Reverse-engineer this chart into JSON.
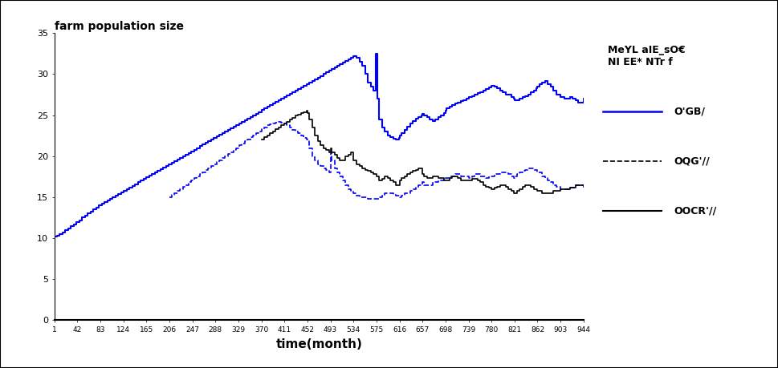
{
  "title": "farm population size",
  "xlabel": "time(month)",
  "ylim": [
    0,
    35
  ],
  "xlim": [
    1,
    944
  ],
  "xticks": [
    1,
    42,
    83,
    124,
    165,
    206,
    247,
    288,
    329,
    370,
    411,
    452,
    493,
    534,
    575,
    616,
    657,
    698,
    739,
    780,
    821,
    862,
    903,
    944
  ],
  "yticks": [
    0,
    5,
    10,
    15,
    20,
    25,
    30,
    35
  ],
  "legend_title": "MeYL aIE_sO€\nNI EE* NTr f",
  "legend_labels": [
    "O'GB/",
    "OQG'//",
    "OOCR'//"
  ],
  "line_blue_solid_color": "blue",
  "line_blue_dashed_color": "blue",
  "line_black_solid_color": "black",
  "background_color": "#ffffff",
  "figsize": [
    9.69,
    4.59
  ],
  "dpi": 100,
  "blue_x": [
    1,
    5,
    10,
    15,
    20,
    25,
    30,
    35,
    40,
    45,
    50,
    55,
    60,
    65,
    70,
    75,
    80,
    85,
    90,
    95,
    100,
    105,
    110,
    115,
    120,
    125,
    130,
    135,
    140,
    145,
    150,
    155,
    160,
    165,
    170,
    175,
    180,
    185,
    190,
    195,
    200,
    205,
    210,
    215,
    220,
    225,
    230,
    235,
    240,
    245,
    250,
    255,
    260,
    265,
    270,
    275,
    280,
    285,
    290,
    295,
    300,
    305,
    310,
    315,
    320,
    325,
    330,
    335,
    340,
    345,
    350,
    355,
    360,
    365,
    370,
    375,
    380,
    385,
    390,
    395,
    400,
    405,
    410,
    415,
    420,
    425,
    430,
    435,
    440,
    445,
    450,
    455,
    460,
    465,
    470,
    475,
    480,
    485,
    490,
    495,
    500,
    505,
    510,
    515,
    520,
    525,
    530,
    534,
    540,
    545,
    550,
    555,
    560,
    565,
    570,
    574,
    576,
    580,
    585,
    590,
    595,
    600,
    605,
    610,
    615,
    616,
    620,
    625,
    630,
    635,
    640,
    645,
    650,
    655,
    657,
    660,
    665,
    670,
    675,
    680,
    685,
    690,
    695,
    698,
    700,
    705,
    710,
    715,
    720,
    725,
    730,
    735,
    739,
    745,
    750,
    755,
    760,
    765,
    770,
    775,
    780,
    785,
    790,
    795,
    800,
    805,
    810,
    815,
    820,
    821,
    825,
    830,
    835,
    840,
    845,
    850,
    855,
    860,
    862,
    865,
    870,
    875,
    880,
    885,
    890,
    895,
    900,
    903,
    910,
    915,
    920,
    925,
    930,
    935,
    940,
    944
  ],
  "blue_y": [
    10.2,
    10.3,
    10.5,
    10.7,
    11.0,
    11.2,
    11.5,
    11.7,
    12.0,
    12.2,
    12.5,
    12.7,
    13.0,
    13.2,
    13.5,
    13.7,
    14.0,
    14.2,
    14.4,
    14.6,
    14.8,
    15.0,
    15.2,
    15.4,
    15.6,
    15.8,
    16.0,
    16.2,
    16.4,
    16.6,
    16.8,
    17.0,
    17.2,
    17.4,
    17.6,
    17.8,
    18.0,
    18.2,
    18.4,
    18.6,
    18.8,
    19.0,
    19.2,
    19.4,
    19.6,
    19.8,
    20.0,
    20.2,
    20.4,
    20.6,
    20.8,
    21.0,
    21.2,
    21.4,
    21.6,
    21.8,
    22.0,
    22.2,
    22.4,
    22.6,
    22.8,
    23.0,
    23.2,
    23.4,
    23.6,
    23.8,
    24.0,
    24.2,
    24.4,
    24.6,
    24.8,
    25.0,
    25.2,
    25.4,
    25.6,
    25.8,
    26.0,
    26.2,
    26.4,
    26.6,
    26.8,
    27.0,
    27.2,
    27.4,
    27.6,
    27.8,
    28.0,
    28.2,
    28.4,
    28.6,
    28.8,
    29.0,
    29.2,
    29.4,
    29.6,
    29.8,
    30.0,
    30.2,
    30.4,
    30.6,
    30.8,
    31.0,
    31.2,
    31.4,
    31.6,
    31.8,
    32.0,
    32.2,
    32.0,
    31.5,
    31.0,
    30.0,
    29.0,
    28.5,
    28.0,
    32.5,
    27.0,
    24.5,
    23.5,
    23.0,
    22.5,
    22.3,
    22.1,
    22.0,
    22.2,
    22.5,
    22.8,
    23.2,
    23.6,
    24.0,
    24.3,
    24.6,
    24.8,
    25.0,
    25.2,
    25.0,
    24.8,
    24.5,
    24.3,
    24.5,
    24.8,
    25.0,
    25.3,
    25.5,
    25.8,
    26.0,
    26.2,
    26.4,
    26.5,
    26.7,
    26.8,
    27.0,
    27.2,
    27.3,
    27.5,
    27.7,
    27.8,
    28.0,
    28.2,
    28.4,
    28.6,
    28.5,
    28.3,
    28.0,
    27.8,
    27.5,
    27.5,
    27.2,
    27.0,
    26.8,
    26.8,
    27.0,
    27.2,
    27.3,
    27.5,
    27.8,
    28.0,
    28.3,
    28.5,
    28.8,
    29.0,
    29.2,
    28.8,
    28.5,
    28.0,
    27.5,
    27.5,
    27.2,
    27.0,
    27.0,
    27.2,
    27.0,
    26.8,
    26.5,
    26.5,
    27.0
  ],
  "dashed_x": [
    206,
    210,
    215,
    220,
    225,
    230,
    235,
    240,
    245,
    250,
    255,
    260,
    265,
    270,
    275,
    280,
    285,
    290,
    295,
    300,
    305,
    310,
    315,
    320,
    325,
    330,
    335,
    340,
    345,
    350,
    355,
    360,
    365,
    370,
    375,
    380,
    385,
    390,
    395,
    400,
    405,
    410,
    415,
    420,
    425,
    430,
    435,
    440,
    445,
    450,
    455,
    460,
    465,
    470,
    475,
    480,
    485,
    490,
    493,
    495,
    500,
    505,
    510,
    515,
    520,
    525,
    530,
    534,
    540,
    545,
    550,
    555,
    560,
    565,
    570,
    575,
    580,
    585,
    590,
    595,
    600,
    605,
    610,
    616,
    620,
    625,
    630,
    635,
    640,
    645,
    650,
    657,
    660,
    665,
    670,
    675,
    680,
    685,
    690,
    695,
    698,
    705,
    710,
    715,
    720,
    725,
    730,
    739,
    745,
    750,
    755,
    760,
    765,
    770,
    775,
    780,
    785,
    790,
    795,
    800,
    805,
    810,
    815,
    820,
    821,
    825,
    830,
    835,
    840,
    845,
    850,
    855,
    862,
    870,
    875,
    880,
    885,
    890,
    895,
    903,
    910,
    920,
    930,
    944
  ],
  "dashed_y": [
    15.0,
    15.3,
    15.5,
    15.8,
    16.0,
    16.3,
    16.5,
    16.8,
    17.0,
    17.3,
    17.5,
    17.8,
    18.0,
    18.3,
    18.5,
    18.8,
    19.0,
    19.3,
    19.5,
    19.8,
    20.0,
    20.3,
    20.5,
    20.8,
    21.0,
    21.3,
    21.5,
    21.8,
    22.0,
    22.3,
    22.5,
    22.8,
    23.0,
    23.3,
    23.5,
    23.8,
    23.9,
    24.0,
    24.1,
    24.2,
    24.1,
    24.0,
    23.8,
    23.5,
    23.2,
    23.0,
    22.8,
    22.5,
    22.2,
    22.0,
    21.0,
    20.0,
    19.5,
    19.0,
    18.8,
    18.5,
    18.3,
    18.0,
    20.5,
    19.5,
    18.5,
    18.0,
    17.5,
    17.0,
    16.5,
    16.0,
    15.8,
    15.5,
    15.2,
    15.0,
    15.0,
    15.0,
    14.8,
    14.8,
    14.8,
    14.8,
    15.0,
    15.2,
    15.5,
    15.5,
    15.5,
    15.3,
    15.2,
    15.0,
    15.2,
    15.5,
    15.5,
    15.8,
    16.0,
    16.2,
    16.5,
    16.8,
    16.5,
    16.5,
    16.5,
    16.8,
    16.8,
    17.0,
    17.0,
    17.2,
    17.3,
    17.5,
    17.5,
    17.8,
    17.8,
    17.5,
    17.5,
    17.3,
    17.5,
    17.8,
    17.8,
    17.5,
    17.5,
    17.3,
    17.5,
    17.5,
    17.8,
    17.8,
    18.0,
    18.0,
    18.0,
    17.8,
    17.5,
    17.3,
    17.5,
    17.8,
    18.0,
    18.2,
    18.3,
    18.5,
    18.5,
    18.3,
    18.0,
    17.5,
    17.3,
    17.0,
    16.8,
    16.5,
    16.3,
    16.0,
    16.0,
    16.2,
    16.5,
    16.2
  ],
  "black_x": [
    370,
    375,
    380,
    385,
    390,
    395,
    400,
    405,
    410,
    415,
    420,
    425,
    430,
    435,
    440,
    445,
    450,
    452,
    455,
    460,
    465,
    470,
    475,
    480,
    485,
    490,
    493,
    495,
    500,
    505,
    510,
    515,
    520,
    525,
    530,
    534,
    540,
    545,
    550,
    555,
    560,
    565,
    570,
    575,
    580,
    585,
    590,
    595,
    600,
    605,
    610,
    616,
    620,
    625,
    630,
    635,
    640,
    645,
    650,
    657,
    660,
    665,
    670,
    675,
    680,
    685,
    690,
    695,
    698,
    705,
    710,
    715,
    720,
    725,
    730,
    739,
    745,
    750,
    755,
    760,
    765,
    770,
    775,
    780,
    785,
    790,
    795,
    800,
    805,
    810,
    815,
    820,
    821,
    825,
    830,
    835,
    840,
    845,
    850,
    855,
    862,
    870,
    880,
    890,
    903,
    910,
    920,
    930,
    944
  ],
  "black_y": [
    22.0,
    22.3,
    22.5,
    22.8,
    23.0,
    23.3,
    23.5,
    23.8,
    24.0,
    24.2,
    24.5,
    24.7,
    25.0,
    25.1,
    25.3,
    25.4,
    25.5,
    25.3,
    24.5,
    23.5,
    22.5,
    21.8,
    21.3,
    21.0,
    20.8,
    20.5,
    21.0,
    20.5,
    20.2,
    19.8,
    19.5,
    19.5,
    20.0,
    20.2,
    20.5,
    19.5,
    19.0,
    18.8,
    18.5,
    18.3,
    18.2,
    18.0,
    17.8,
    17.5,
    17.0,
    17.2,
    17.5,
    17.3,
    17.0,
    16.8,
    16.5,
    17.0,
    17.3,
    17.5,
    17.8,
    18.0,
    18.2,
    18.3,
    18.5,
    17.8,
    17.5,
    17.3,
    17.3,
    17.5,
    17.5,
    17.3,
    17.3,
    17.0,
    17.0,
    17.3,
    17.5,
    17.5,
    17.3,
    17.0,
    17.0,
    17.0,
    17.2,
    17.2,
    17.0,
    16.8,
    16.5,
    16.3,
    16.2,
    16.0,
    16.2,
    16.3,
    16.5,
    16.5,
    16.3,
    16.0,
    15.8,
    15.5,
    15.5,
    15.8,
    16.0,
    16.3,
    16.5,
    16.5,
    16.3,
    16.0,
    15.8,
    15.5,
    15.5,
    15.8,
    16.0,
    16.0,
    16.2,
    16.5,
    16.5
  ]
}
